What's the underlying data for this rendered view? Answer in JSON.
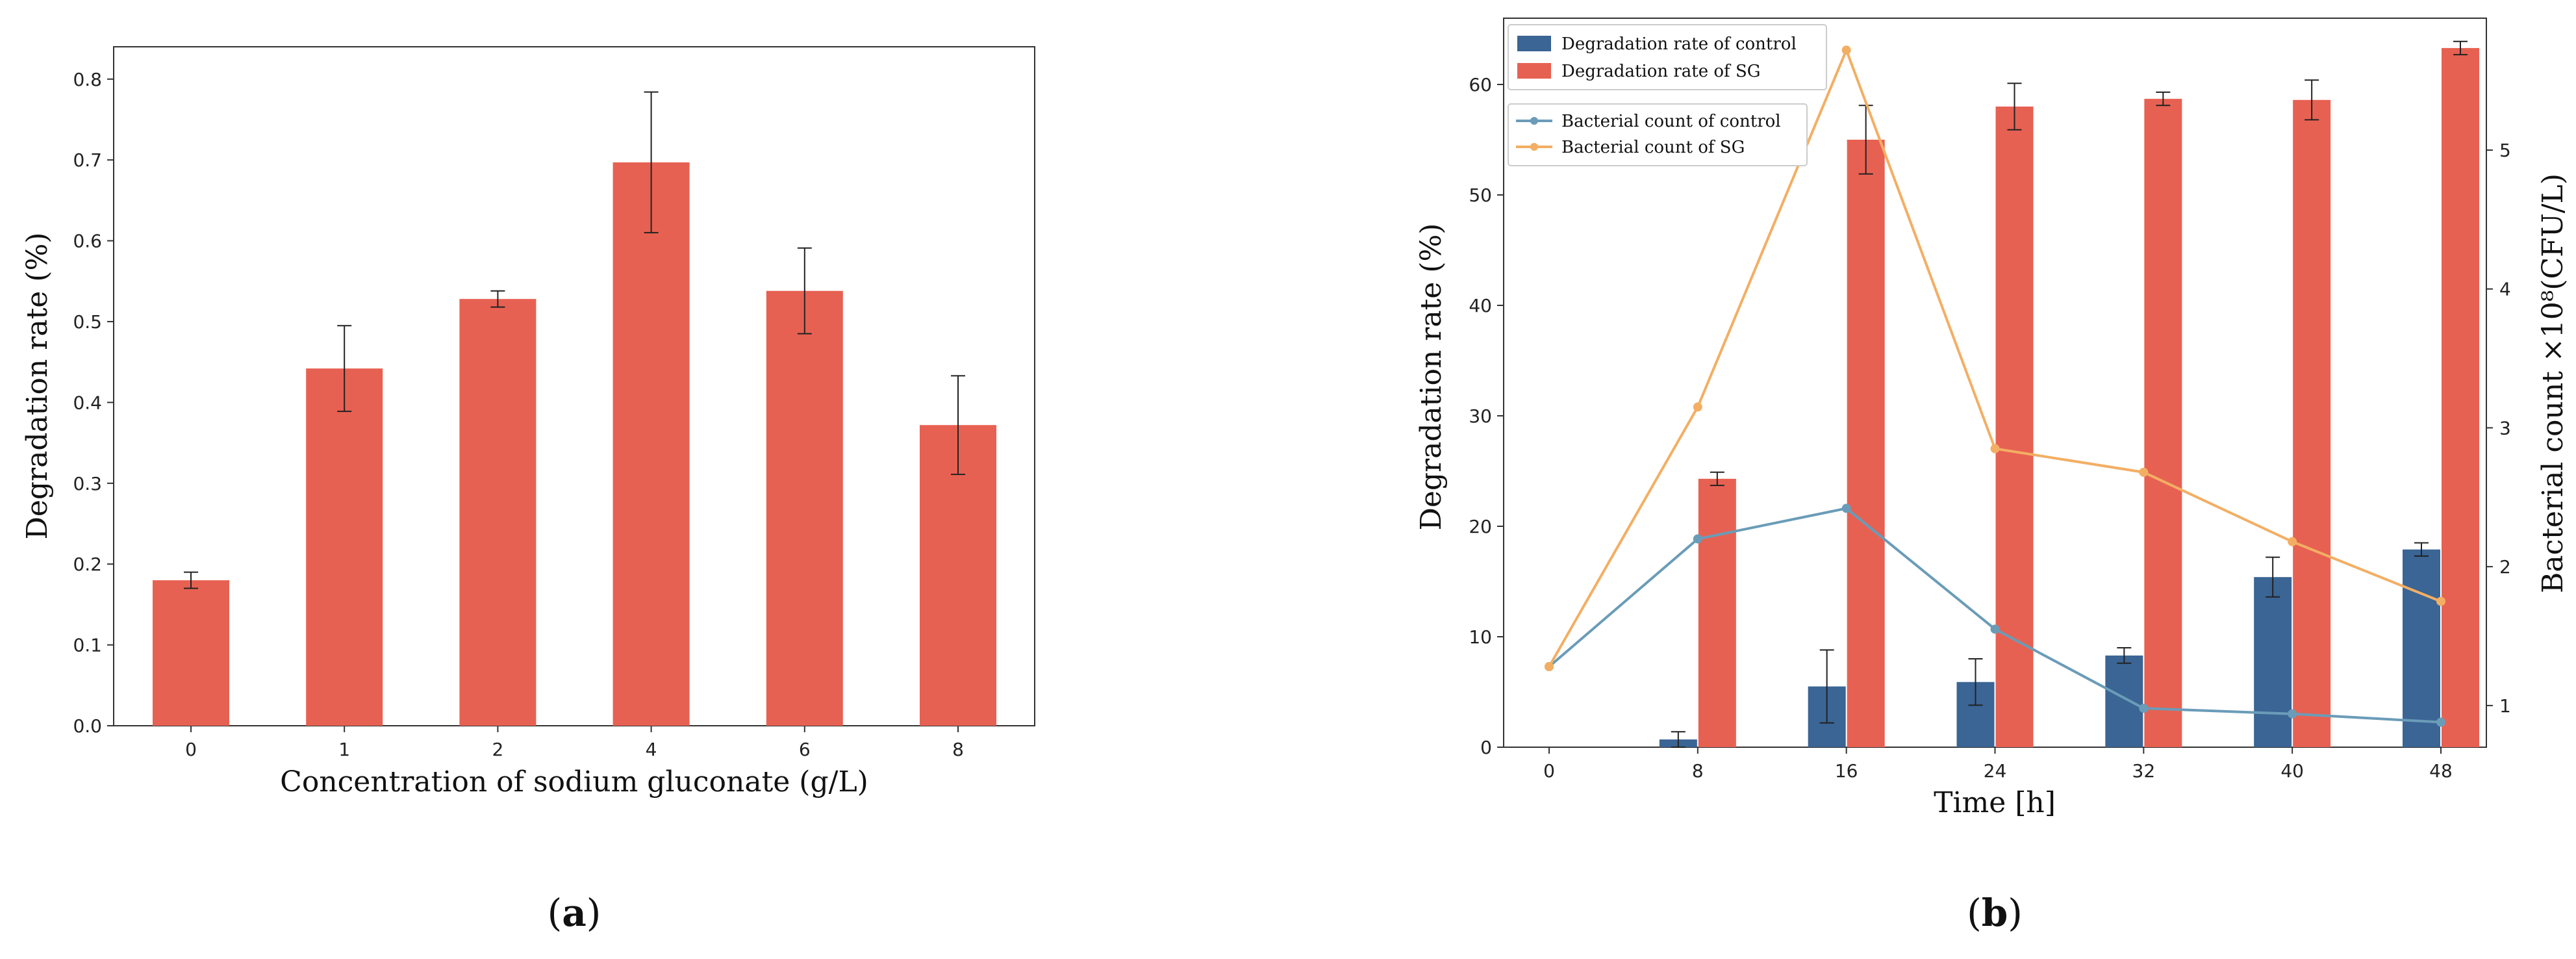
{
  "panels": [
    {
      "label": "a"
    },
    {
      "label": "b"
    }
  ],
  "chart_data": [
    {
      "type": "bar",
      "categories": [
        "0",
        "1",
        "2",
        "4",
        "6",
        "8"
      ],
      "values": [
        0.18,
        0.442,
        0.528,
        0.697,
        0.538,
        0.372
      ],
      "errors": [
        0.01,
        0.053,
        0.01,
        0.087,
        0.053,
        0.061
      ],
      "title": "",
      "xlabel": "Concentration of sodium gluconate (g/L)",
      "ylabel": "Degradation rate (%)",
      "ylim": [
        0,
        0.84
      ],
      "yticks": [
        "0.0",
        "0.1",
        "0.2",
        "0.3",
        "0.4",
        "0.5",
        "0.6",
        "0.7",
        "0.8"
      ],
      "grid": false,
      "colors": {
        "bar": "#E76152"
      }
    },
    {
      "type": "bar",
      "x": [
        "0",
        "8",
        "16",
        "24",
        "32",
        "40",
        "48"
      ],
      "xlabel": "Time [h]",
      "ylabel": "Degradation rate (%)",
      "ylim": [
        0,
        66
      ],
      "yticks": [
        "0",
        "10",
        "20",
        "30",
        "40",
        "50",
        "60"
      ],
      "y2label": "Bacterial count ×10⁸(CFU/L)",
      "y2lim": [
        0.7,
        5.95
      ],
      "y2ticks": [
        "1",
        "2",
        "3",
        "4",
        "5"
      ],
      "grid": false,
      "legend_position": "top-left",
      "series": [
        {
          "name": "Degradation rate of control",
          "kind": "bar",
          "axis": "left",
          "color": "#3A6594",
          "values": [
            0,
            0.7,
            5.5,
            5.9,
            8.3,
            15.4,
            17.9
          ],
          "errors": [
            0,
            0.7,
            3.3,
            2.1,
            0.7,
            1.8,
            0.6
          ]
        },
        {
          "name": "Degradation rate of SG",
          "kind": "bar",
          "axis": "left",
          "color": "#E76152",
          "values": [
            0,
            24.3,
            55.0,
            58.0,
            58.7,
            58.6,
            63.3
          ],
          "errors": [
            0,
            0.6,
            3.1,
            2.1,
            0.6,
            1.8,
            0.6
          ]
        },
        {
          "name": "Bacterial count of control",
          "kind": "line",
          "axis": "right",
          "color": "#6A9CB8",
          "values": [
            1.28,
            2.2,
            2.42,
            1.55,
            0.98,
            0.94,
            0.88
          ]
        },
        {
          "name": "Bacterial count of SG",
          "kind": "line",
          "axis": "right",
          "color": "#F3AE63",
          "values": [
            1.28,
            3.15,
            5.72,
            2.85,
            2.68,
            2.18,
            1.75
          ]
        }
      ]
    }
  ]
}
